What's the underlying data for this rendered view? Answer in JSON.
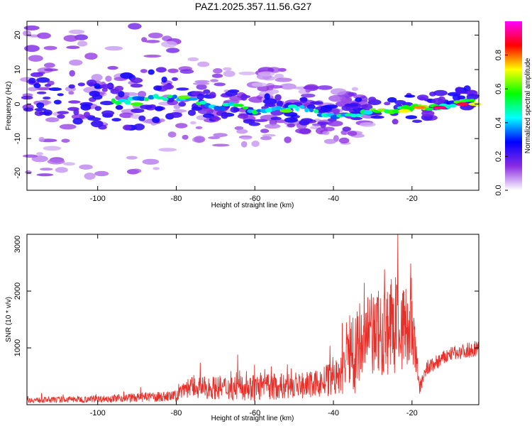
{
  "title": "PAZ1.2025.357.11.56.G27",
  "chart_data": [
    {
      "type": "heatmap",
      "name": "spectrogram",
      "xlabel": "Height of straight line (km)",
      "ylabel": "Frequency (Hz)",
      "xlim": [
        -118,
        -3
      ],
      "ylim": [
        -25,
        24
      ],
      "xticks": [
        -100,
        -80,
        -60,
        -40,
        -20
      ],
      "yticks": [
        -20,
        -10,
        0,
        10,
        20
      ],
      "ridge": [
        {
          "x": -118,
          "y": 2
        },
        {
          "x": -110,
          "y": 1
        },
        {
          "x": -100,
          "y": 0
        },
        {
          "x": -92,
          "y": 1
        },
        {
          "x": -85,
          "y": 2
        },
        {
          "x": -80,
          "y": 2
        },
        {
          "x": -75,
          "y": 1
        },
        {
          "x": -70,
          "y": -1
        },
        {
          "x": -65,
          "y": 0
        },
        {
          "x": -60,
          "y": -2
        },
        {
          "x": -55,
          "y": -1
        },
        {
          "x": -50,
          "y": -1
        },
        {
          "x": -45,
          "y": -2
        },
        {
          "x": -40,
          "y": -4
        },
        {
          "x": -35,
          "y": -3
        },
        {
          "x": -30,
          "y": -2
        },
        {
          "x": -25,
          "y": -2
        },
        {
          "x": -20,
          "y": -1
        },
        {
          "x": -15,
          "y": -1
        },
        {
          "x": -10,
          "y": 0
        },
        {
          "x": -3,
          "y": 1
        }
      ]
    },
    {
      "type": "colorbar",
      "name": "colorbar",
      "label": "Normalized spectral amplitude",
      "range": [
        0,
        1
      ],
      "ticks": [
        "0.0",
        "0.2",
        "0.4",
        "0.6",
        "0.8"
      ],
      "colors": [
        "#ffffff",
        "#8a2be2",
        "#0000ff",
        "#00ffff",
        "#00ff00",
        "#ffff00",
        "#ff0000",
        "#ff00ff"
      ]
    },
    {
      "type": "line",
      "name": "snr",
      "xlabel": "Height of straight line (km)",
      "ylabel": "SNR (10 * v/v)",
      "xlim": [
        -118,
        -3
      ],
      "ylim": [
        0,
        3000
      ],
      "xticks": [
        -100,
        -80,
        -60,
        -40,
        -20
      ],
      "yticks": [
        1000,
        2000,
        3000
      ],
      "color": "#e8302a",
      "envelope": [
        {
          "x": -118,
          "base": 80,
          "amp": 80
        },
        {
          "x": -100,
          "base": 100,
          "amp": 100
        },
        {
          "x": -80,
          "base": 150,
          "amp": 160
        },
        {
          "x": -78,
          "base": 300,
          "amp": 300
        },
        {
          "x": -60,
          "base": 300,
          "amp": 400
        },
        {
          "x": -45,
          "base": 350,
          "amp": 380
        },
        {
          "x": -38,
          "base": 500,
          "amp": 600
        },
        {
          "x": -36,
          "base": 900,
          "amp": 1300
        },
        {
          "x": -30,
          "base": 1200,
          "amp": 1300
        },
        {
          "x": -24,
          "base": 1400,
          "amp": 1500
        },
        {
          "x": -20,
          "base": 1300,
          "amp": 1100
        },
        {
          "x": -18,
          "base": 300,
          "amp": 200
        },
        {
          "x": -16,
          "base": 650,
          "amp": 250
        },
        {
          "x": -10,
          "base": 900,
          "amp": 200
        },
        {
          "x": -3,
          "base": 1000,
          "amp": 250
        }
      ]
    }
  ]
}
